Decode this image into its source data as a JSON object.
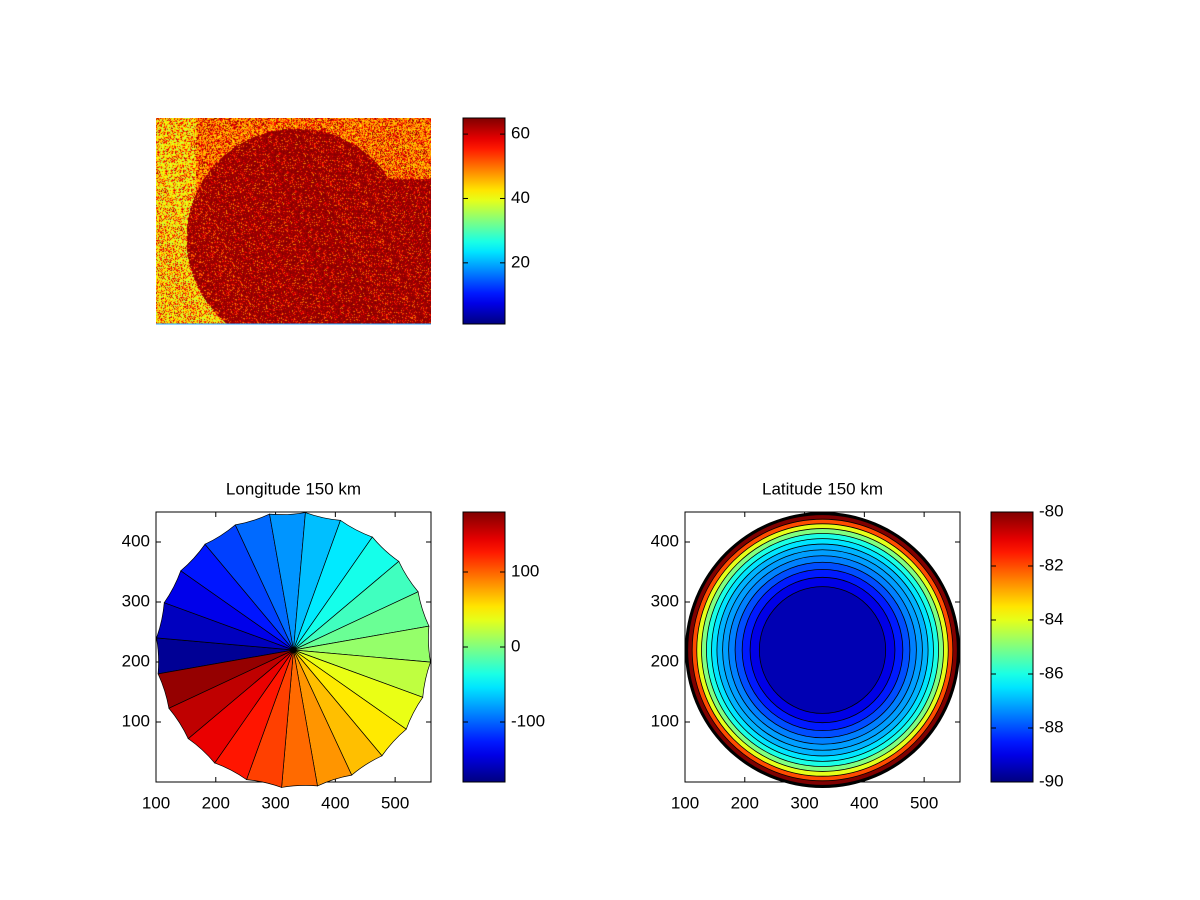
{
  "chart_data": [
    {
      "type": "heatmap",
      "title": "",
      "description_values": "noisy image, background ~40-55, large disc ~60-65 at right",
      "colorbar": {
        "ticks": [
          20,
          40,
          60
        ],
        "range": [
          1,
          65
        ]
      }
    },
    {
      "type": "heatmap",
      "title": "Longitude 150 km",
      "xlim": [
        100,
        560
      ],
      "ylim": [
        0,
        450
      ],
      "xticks": [
        100,
        200,
        300,
        400,
        500
      ],
      "yticks": [
        100,
        200,
        300,
        400
      ],
      "disc": {
        "center": [
          330,
          220
        ],
        "radius": 230
      },
      "sectors": 24,
      "colorbar": {
        "ticks": [
          100,
          0,
          -100
        ],
        "range": [
          -180,
          180
        ]
      }
    },
    {
      "type": "heatmap",
      "title": "Latitude 150 km",
      "xlim": [
        100,
        560
      ],
      "ylim": [
        0,
        450
      ],
      "xticks": [
        100,
        200,
        300,
        400,
        500
      ],
      "yticks": [
        100,
        200,
        300,
        400
      ],
      "disc": {
        "center": [
          330,
          220
        ],
        "radius": 230
      },
      "rings": [
        -89.5,
        -89,
        -88.5,
        -88,
        -87.5,
        -87.2,
        -87,
        -86.5,
        -86,
        -85,
        -84,
        -82,
        -80
      ],
      "colorbar": {
        "ticks": [
          -80,
          -82,
          -84,
          -86,
          -88,
          -90
        ],
        "range": [
          -90,
          -80
        ]
      }
    }
  ]
}
